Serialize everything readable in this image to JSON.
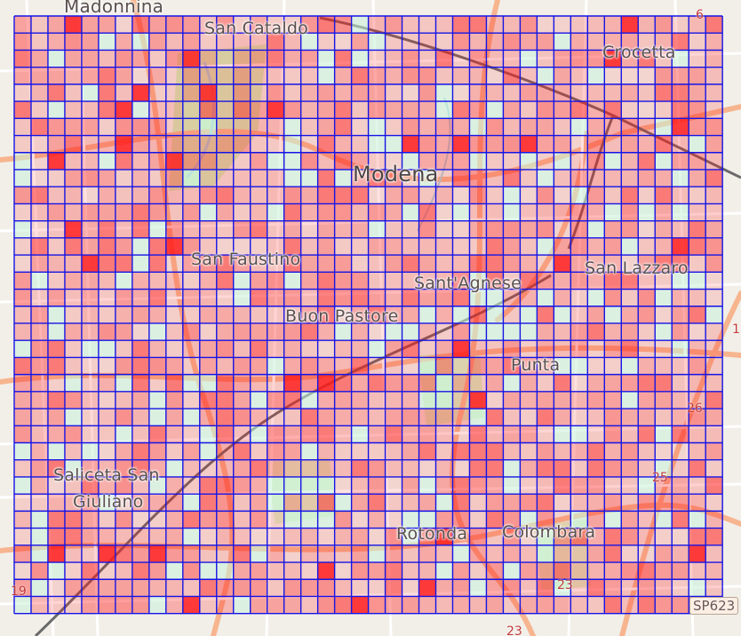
{
  "map": {
    "colors": {
      "background": "#f2efe9",
      "grid_line": "#1414e6",
      "heat_hot": "#ff1a1a",
      "heat_cold": "#c8f0d8",
      "road_major": "#f7b58f",
      "road_minor": "#ffffff",
      "railway": "#6a6a6a",
      "park": "#cdebb0",
      "water": "#aad3df"
    },
    "grid": {
      "columns": 42,
      "rows": 35
    },
    "place_labels": {
      "madonnina": "Madonnina",
      "san_cataldo": "San Cataldo",
      "crocetta": "Crocetta",
      "modena": "Modena",
      "san_faustino": "San Faustino",
      "sant_agnese": "Sant'Agnese",
      "san_lazzaro": "San Lazzaro",
      "buon_pastore": "Buon Pastore",
      "punta": "Punta",
      "saliceta_1": "Saliceta San",
      "saliceta_2": "Giuliano",
      "rotonda": "Rotonda",
      "colombara": "Colombara"
    },
    "road_labels": {
      "r6": "6",
      "r1": "1",
      "r26": "26",
      "r25": "25",
      "r23": "23",
      "r19": "19",
      "r22": "23",
      "sp623": "SP623"
    }
  }
}
